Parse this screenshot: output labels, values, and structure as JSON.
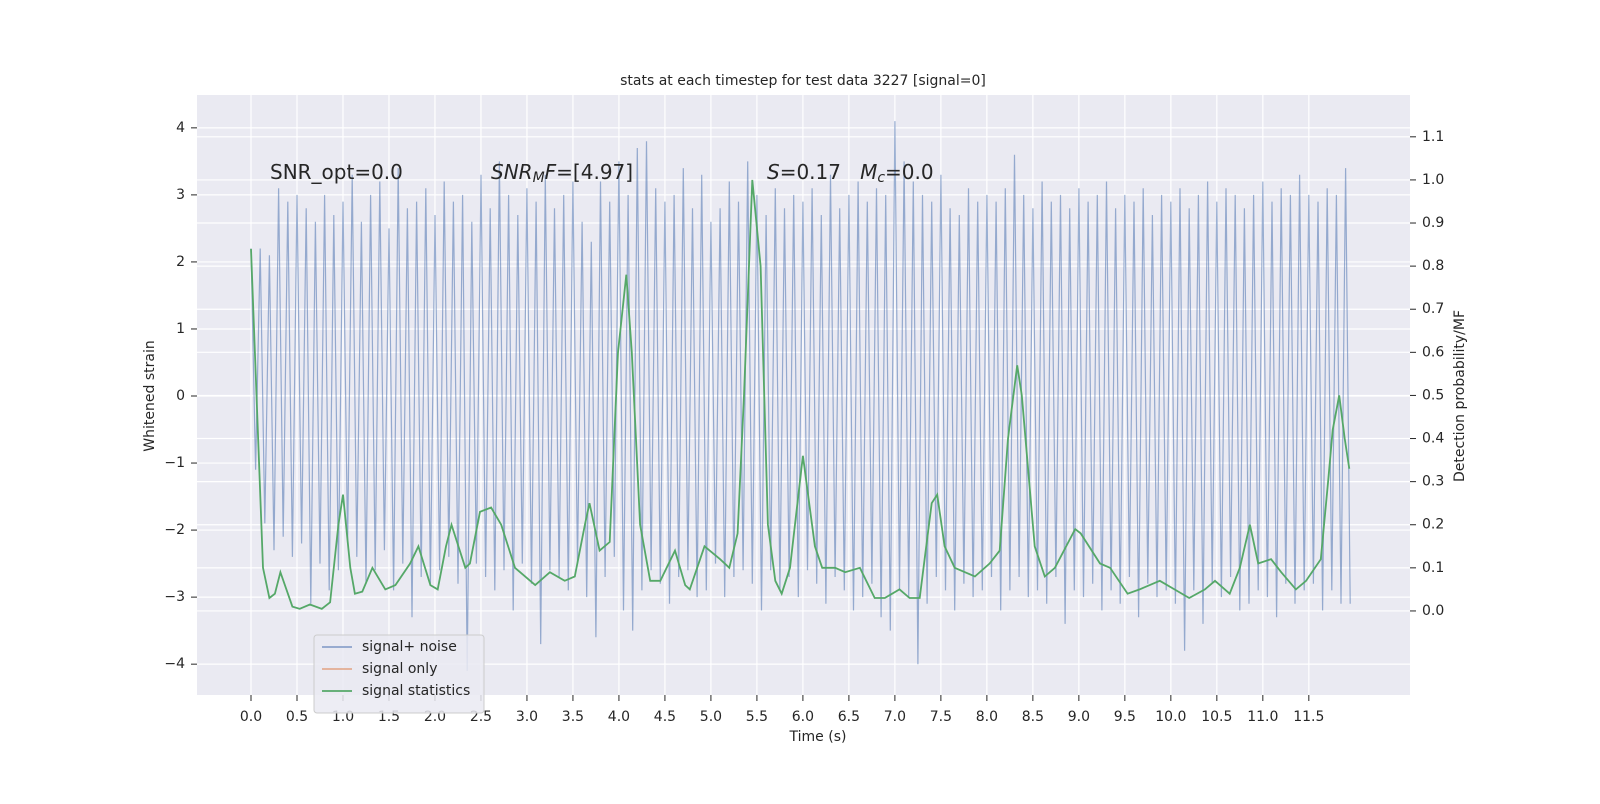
{
  "chart_data": {
    "type": "line",
    "title": "stats at each timestep for test data 3227 [signal=0]",
    "xlabel": "Time (s)",
    "ylabel": "Whitened strain",
    "y2label": "Detection probability/MF",
    "annotations": [
      [
        {
          "text": "SNR_opt=0.0"
        }
      ],
      [
        {
          "text": "SNR",
          "style": "italic"
        },
        {
          "text": "M",
          "style": "sub"
        },
        {
          "text": "F",
          "style": "italic"
        },
        {
          "text": "=[4.97]"
        }
      ],
      [
        {
          "text": "S",
          "style": "italic"
        },
        {
          "text": "=0.17   "
        },
        {
          "text": "M",
          "style": "italic"
        },
        {
          "text": "c",
          "style": "sub"
        },
        {
          "text": "=0.0"
        }
      ]
    ],
    "xlim": [
      -0.587,
      12.6
    ],
    "ylim": [
      -4.46,
      4.49
    ],
    "y2lim": [
      -0.195,
      1.197
    ],
    "xticks": [
      {
        "value": 0,
        "label": "0.0"
      },
      {
        "value": 0.5,
        "label": "0.5"
      },
      {
        "value": 1,
        "label": "1.0"
      },
      {
        "value": 1.5,
        "label": "1.5"
      },
      {
        "value": 2,
        "label": "2.0"
      },
      {
        "value": 2.5,
        "label": "2.5"
      },
      {
        "value": 3,
        "label": "3.0"
      },
      {
        "value": 3.5,
        "label": "3.5"
      },
      {
        "value": 4,
        "label": "4.0"
      },
      {
        "value": 4.5,
        "label": "4.5"
      },
      {
        "value": 5,
        "label": "5.0"
      },
      {
        "value": 5.5,
        "label": "5.5"
      },
      {
        "value": 6,
        "label": "6.0"
      },
      {
        "value": 6.5,
        "label": "6.5"
      },
      {
        "value": 7,
        "label": "7.0"
      },
      {
        "value": 7.5,
        "label": "7.5"
      },
      {
        "value": 8,
        "label": "8.0"
      },
      {
        "value": 8.5,
        "label": "8.5"
      },
      {
        "value": 9,
        "label": "9.0"
      },
      {
        "value": 9.5,
        "label": "9.5"
      },
      {
        "value": 10,
        "label": "10.0"
      },
      {
        "value": 10.5,
        "label": "10.5"
      },
      {
        "value": 11,
        "label": "11.0"
      },
      {
        "value": 11.5,
        "label": "11.5"
      }
    ],
    "yticks": [
      {
        "value": -4,
        "label": "−4"
      },
      {
        "value": -3,
        "label": "−3"
      },
      {
        "value": -2,
        "label": "−2"
      },
      {
        "value": -1,
        "label": "−1"
      },
      0,
      1,
      2,
      3,
      4
    ],
    "y2ticks": [
      {
        "value": 0,
        "label": "0.0"
      },
      {
        "value": 0.1,
        "label": "0.1"
      },
      {
        "value": 0.2,
        "label": "0.2"
      },
      {
        "value": 0.3,
        "label": "0.3"
      },
      {
        "value": 0.4,
        "label": "0.4"
      },
      {
        "value": 0.5,
        "label": "0.5"
      },
      {
        "value": 0.6,
        "label": "0.6"
      },
      {
        "value": 0.7,
        "label": "0.7"
      },
      {
        "value": 0.8,
        "label": "0.8"
      },
      {
        "value": 0.9,
        "label": "0.9"
      },
      {
        "value": 1,
        "label": "1.0"
      },
      {
        "value": 1.1,
        "label": "1.1"
      }
    ],
    "grid": true,
    "legend": "lower left",
    "series": [
      {
        "name": "signal+ noise",
        "color": "#4c72b0",
        "x": [
          0,
          0.05,
          0.1,
          0.15,
          0.2,
          0.25,
          0.3,
          0.35,
          0.4,
          0.45,
          0.5,
          0.55,
          0.6,
          0.65,
          0.7,
          0.75,
          0.8,
          0.85,
          0.9,
          0.95,
          1,
          1.05,
          1.1,
          1.15,
          1.2,
          1.25,
          1.3,
          1.35,
          1.4,
          1.45,
          1.5,
          1.55,
          1.6,
          1.65,
          1.7,
          1.75,
          1.8,
          1.85,
          1.9,
          1.95,
          2,
          2.05,
          2.1,
          2.15,
          2.2,
          2.25,
          2.3,
          2.35,
          2.4,
          2.45,
          2.5,
          2.55,
          2.6,
          2.65,
          2.7,
          2.75,
          2.8,
          2.85,
          2.9,
          2.95,
          3,
          3.05,
          3.1,
          3.15,
          3.2,
          3.25,
          3.3,
          3.35,
          3.4,
          3.45,
          3.5,
          3.55,
          3.6,
          3.65,
          3.7,
          3.75,
          3.8,
          3.85,
          3.9,
          3.95,
          4,
          4.05,
          4.1,
          4.15,
          4.2,
          4.25,
          4.3,
          4.35,
          4.4,
          4.45,
          4.5,
          4.55,
          4.6,
          4.65,
          4.7,
          4.75,
          4.8,
          4.85,
          4.9,
          4.95,
          5,
          5.05,
          5.1,
          5.15,
          5.2,
          5.25,
          5.3,
          5.35,
          5.4,
          5.45,
          5.5,
          5.55,
          5.6,
          5.65,
          5.7,
          5.75,
          5.8,
          5.85,
          5.9,
          5.95,
          6,
          6.05,
          6.1,
          6.15,
          6.2,
          6.25,
          6.3,
          6.35,
          6.4,
          6.45,
          6.5,
          6.55,
          6.6,
          6.65,
          6.7,
          6.75,
          6.8,
          6.85,
          6.9,
          6.95,
          7,
          7.05,
          7.1,
          7.15,
          7.2,
          7.25,
          7.3,
          7.35,
          7.4,
          7.45,
          7.5,
          7.55,
          7.6,
          7.65,
          7.7,
          7.75,
          7.8,
          7.85,
          7.9,
          7.95,
          8,
          8.05,
          8.1,
          8.15,
          8.2,
          8.25,
          8.3,
          8.35,
          8.4,
          8.45,
          8.5,
          8.55,
          8.6,
          8.65,
          8.7,
          8.75,
          8.8,
          8.85,
          8.9,
          8.95,
          9,
          9.05,
          9.1,
          9.15,
          9.2,
          9.25,
          9.3,
          9.35,
          9.4,
          9.45,
          9.5,
          9.55,
          9.6,
          9.65,
          9.7,
          9.75,
          9.8,
          9.85,
          9.9,
          9.95,
          10,
          10.05,
          10.1,
          10.15,
          10.2,
          10.25,
          10.3,
          10.35,
          10.4,
          10.45,
          10.5,
          10.55,
          10.6,
          10.65,
          10.7,
          10.75,
          10.8,
          10.85,
          10.9,
          10.95,
          11,
          11.05,
          11.1,
          11.15,
          11.2,
          11.25,
          11.3,
          11.35,
          11.4,
          11.45,
          11.5,
          11.55,
          11.6,
          11.65,
          11.7,
          11.75,
          11.8,
          11.85,
          11.9,
          11.95
        ],
        "values": [
          2.2,
          -1.1,
          2.2,
          -1.9,
          2.1,
          -2.3,
          3.1,
          -2.1,
          2.9,
          -2.4,
          3.0,
          -2.2,
          2.8,
          -3.1,
          2.6,
          -2.5,
          3.0,
          -2.9,
          2.7,
          -2.6,
          2.9,
          -2.2,
          3.3,
          -2.4,
          2.6,
          -2.8,
          3.0,
          -2.6,
          3.2,
          -2.3,
          2.5,
          -2.9,
          3.4,
          -2.5,
          2.8,
          -3.3,
          2.9,
          -2.7,
          3.1,
          -2.8,
          2.7,
          -2.6,
          3.2,
          -2.4,
          2.9,
          -2.8,
          3.0,
          -4.1,
          2.6,
          -2.5,
          3.3,
          -2.7,
          2.8,
          -2.9,
          3.5,
          -2.6,
          3.0,
          -3.2,
          2.7,
          -2.5,
          3.1,
          -2.8,
          2.9,
          -3.7,
          3.3,
          -2.6,
          2.8,
          -2.7,
          3.0,
          -2.9,
          3.2,
          -2.5,
          2.6,
          -3.0,
          2.3,
          -3.6,
          3.2,
          -2.7,
          2.9,
          -2.4,
          3.5,
          -3.2,
          3.0,
          -3.5,
          3.7,
          -2.9,
          3.8,
          -2.6,
          3.1,
          -2.8,
          2.9,
          -3.1,
          3.0,
          -2.7,
          3.4,
          -2.6,
          2.8,
          -3.0,
          3.3,
          -2.9,
          2.6,
          -2.5,
          2.8,
          -3.0,
          3.2,
          -2.7,
          2.9,
          -2.6,
          3.5,
          -2.8,
          3.0,
          -3.2,
          2.7,
          -2.6,
          3.1,
          -2.9,
          2.8,
          -2.7,
          3.0,
          -3.0,
          2.9,
          -2.6,
          3.1,
          -2.8,
          2.7,
          -3.1,
          3.3,
          -2.7,
          2.8,
          -2.9,
          3.0,
          -3.2,
          3.2,
          -3.0,
          2.9,
          -2.8,
          3.1,
          -3.3,
          3.0,
          -3.5,
          4.1,
          -2.9,
          3.5,
          -3.0,
          3.2,
          -4.0,
          3.0,
          -3.1,
          2.9,
          -2.7,
          3.3,
          -2.9,
          2.8,
          -3.2,
          2.7,
          -2.8,
          3.1,
          -3.0,
          2.9,
          -2.9,
          3.0,
          -2.7,
          2.9,
          -3.2,
          3.1,
          -2.9,
          3.6,
          -2.7,
          3.0,
          -3.0,
          2.8,
          -2.9,
          3.2,
          -3.1,
          2.9,
          -2.7,
          3.0,
          -3.4,
          2.8,
          -2.9,
          3.1,
          -3.0,
          2.9,
          -2.8,
          3.0,
          -3.2,
          3.2,
          -2.9,
          2.8,
          -3.1,
          3.0,
          -2.7,
          2.9,
          -3.3,
          3.1,
          -2.8,
          2.7,
          -3.0,
          3.0,
          -2.9,
          2.9,
          -3.1,
          3.1,
          -3.8,
          2.8,
          -2.9,
          3.0,
          -3.4,
          3.2,
          -2.8,
          2.9,
          -3.0,
          3.1,
          -2.7,
          3.0,
          -3.2,
          2.8,
          -3.1,
          3.0,
          -2.9,
          3.2,
          -3.0,
          2.9,
          -3.3,
          3.1,
          -2.8,
          3.0,
          -3.1,
          3.3,
          -2.9,
          3.0,
          -2.8,
          2.9,
          -3.2,
          3.1,
          -2.9,
          3.0,
          -3.1,
          3.4,
          -3.1
        ]
      },
      {
        "name": "signal only",
        "color": "#dd8452"
      },
      {
        "name": "signal statistics",
        "color": "#55a868",
        "axis": "y2",
        "x": [
          0,
          0.13,
          0.2,
          0.26,
          0.32,
          0.45,
          0.53,
          0.64,
          0.77,
          0.86,
          0.95,
          1.0,
          1.08,
          1.13,
          1.21,
          1.32,
          1.46,
          1.57,
          1.73,
          1.82,
          1.95,
          2.03,
          2.12,
          2.18,
          2.33,
          2.38,
          2.49,
          2.61,
          2.72,
          2.87,
          3.09,
          3.25,
          3.41,
          3.52,
          3.63,
          3.68,
          3.79,
          3.9,
          3.99,
          4.08,
          4.14,
          4.23,
          4.34,
          4.45,
          4.61,
          4.72,
          4.77,
          4.93,
          5.1,
          5.2,
          5.29,
          5.36,
          5.45,
          5.54,
          5.62,
          5.7,
          5.77,
          5.86,
          6.0,
          6.13,
          6.21,
          6.35,
          6.46,
          6.62,
          6.78,
          6.89,
          7.05,
          7.16,
          7.27,
          7.4,
          7.46,
          7.54,
          7.65,
          7.87,
          8.03,
          8.14,
          8.23,
          8.33,
          8.38,
          8.52,
          8.63,
          8.74,
          8.96,
          9.02,
          9.23,
          9.34,
          9.53,
          9.66,
          9.88,
          10.04,
          10.2,
          10.37,
          10.48,
          10.64,
          10.75,
          10.86,
          10.95,
          11.09,
          11.2,
          11.36,
          11.47,
          11.63,
          11.71,
          11.76,
          11.83,
          11.89,
          11.94
        ],
        "values": [
          0.84,
          0.1,
          0.03,
          0.04,
          0.09,
          0.01,
          0.005,
          0.015,
          0.005,
          0.02,
          0.2,
          0.27,
          0.1,
          0.04,
          0.045,
          0.1,
          0.05,
          0.06,
          0.11,
          0.15,
          0.06,
          0.05,
          0.15,
          0.2,
          0.1,
          0.11,
          0.23,
          0.24,
          0.2,
          0.1,
          0.06,
          0.09,
          0.07,
          0.08,
          0.2,
          0.25,
          0.14,
          0.16,
          0.6,
          0.78,
          0.6,
          0.2,
          0.07,
          0.07,
          0.14,
          0.06,
          0.05,
          0.15,
          0.12,
          0.1,
          0.18,
          0.5,
          1.0,
          0.8,
          0.2,
          0.07,
          0.04,
          0.1,
          0.36,
          0.15,
          0.1,
          0.1,
          0.09,
          0.1,
          0.03,
          0.03,
          0.05,
          0.03,
          0.03,
          0.25,
          0.27,
          0.15,
          0.1,
          0.08,
          0.11,
          0.14,
          0.4,
          0.57,
          0.5,
          0.15,
          0.08,
          0.1,
          0.19,
          0.18,
          0.11,
          0.1,
          0.04,
          0.05,
          0.07,
          0.05,
          0.03,
          0.05,
          0.07,
          0.04,
          0.1,
          0.2,
          0.11,
          0.12,
          0.09,
          0.05,
          0.07,
          0.12,
          0.3,
          0.42,
          0.5,
          0.4,
          0.33
        ]
      }
    ]
  }
}
